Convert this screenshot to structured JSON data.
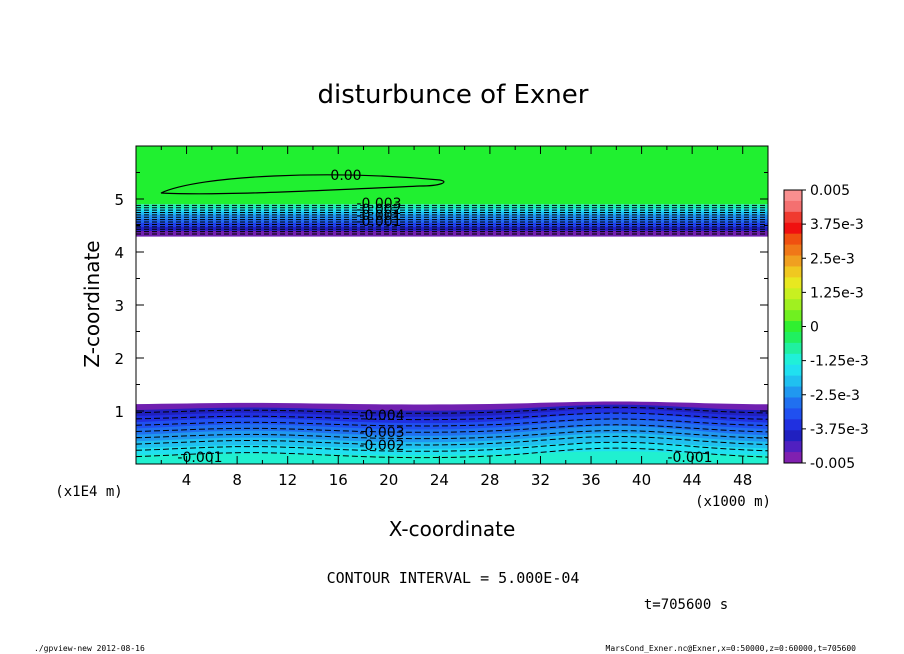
{
  "chart_data": {
    "type": "contour",
    "title": "disturbunce of Exner",
    "xlabel": "X-coordinate",
    "ylabel": "Z-coordinate",
    "x_unit_note": "(x1000 m)",
    "y_unit_note": "(x1E4 m)",
    "xlim": [
      0,
      50
    ],
    "ylim": [
      0,
      6
    ],
    "x_ticks": [
      "4",
      "8",
      "12",
      "16",
      "20",
      "24",
      "28",
      "32",
      "36",
      "40",
      "44",
      "48"
    ],
    "y_ticks": [
      "1",
      "2",
      "3",
      "4",
      "5"
    ],
    "colorbar": {
      "labels": [
        "0.005",
        "3.75e-3",
        "2.5e-3",
        "1.25e-3",
        "0",
        "-1.25e-3",
        "-2.5e-3",
        "-3.75e-3",
        "-0.005"
      ],
      "min": -0.005,
      "max": 0.005,
      "colors_top_to_bottom": [
        "#f98f8f",
        "#f47070",
        "#f03a30",
        "#f01010",
        "#f05010",
        "#f07818",
        "#f0a020",
        "#f0c820",
        "#e8e820",
        "#c8f020",
        "#a0f020",
        "#70f020",
        "#30f030",
        "#20f060",
        "#20f0a0",
        "#20f0d8",
        "#20e0f0",
        "#20c0f0",
        "#2098f0",
        "#2070f0",
        "#2050f0",
        "#2030e0",
        "#2020c0",
        "#5020c0",
        "#8020b0"
      ]
    },
    "contour_labels": [
      "0.00",
      "-0.001",
      "-0.002",
      "-0.003",
      "-0.004",
      "-0.001",
      "-0.001",
      "-0.002",
      "-0.003",
      "-0.004"
    ],
    "contour_interval_text": "CONTOUR INTERVAL = 5.000E-04",
    "time_text": "t=705600 s"
  },
  "footer": {
    "left": "./gpview-new   2012-08-16",
    "right": "MarsCond_Exner.nc@Exner,x=0:50000,z=0:60000,t=705600"
  }
}
